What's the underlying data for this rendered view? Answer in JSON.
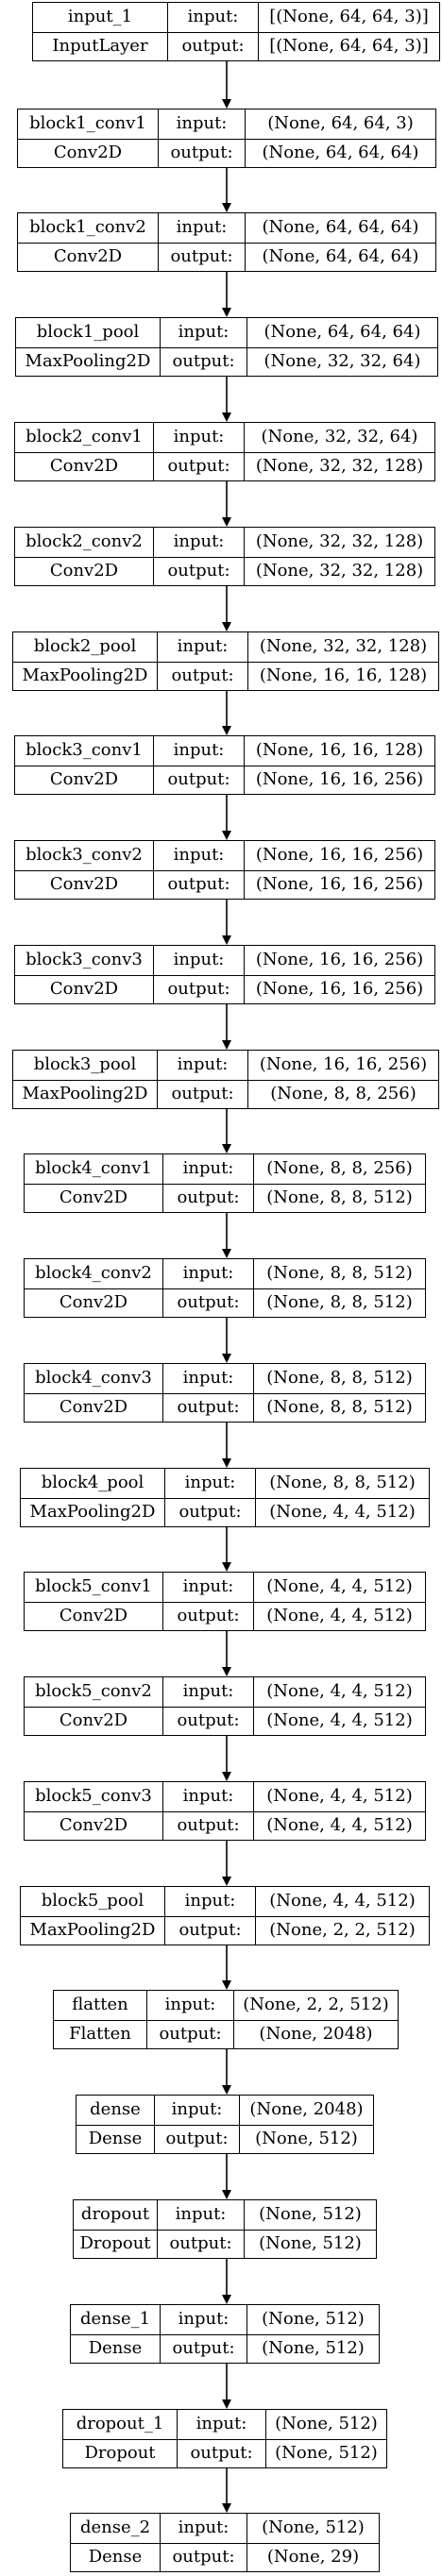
{
  "diagram": {
    "input_label": "input:",
    "output_label": "output:",
    "layers": [
      {
        "name": "input_1",
        "type": "InputLayer",
        "input": "[(None, 64, 64, 3)]",
        "output": "[(None, 64, 64, 3)]"
      },
      {
        "name": "block1_conv1",
        "type": "Conv2D",
        "input": "(None, 64, 64, 3)",
        "output": "(None, 64, 64, 64)"
      },
      {
        "name": "block1_conv2",
        "type": "Conv2D",
        "input": "(None, 64, 64, 64)",
        "output": "(None, 64, 64, 64)"
      },
      {
        "name": "block1_pool",
        "type": "MaxPooling2D",
        "input": "(None, 64, 64, 64)",
        "output": "(None, 32, 32, 64)"
      },
      {
        "name": "block2_conv1",
        "type": "Conv2D",
        "input": "(None, 32, 32, 64)",
        "output": "(None, 32, 32, 128)"
      },
      {
        "name": "block2_conv2",
        "type": "Conv2D",
        "input": "(None, 32, 32, 128)",
        "output": "(None, 32, 32, 128)"
      },
      {
        "name": "block2_pool",
        "type": "MaxPooling2D",
        "input": "(None, 32, 32, 128)",
        "output": "(None, 16, 16, 128)"
      },
      {
        "name": "block3_conv1",
        "type": "Conv2D",
        "input": "(None, 16, 16, 128)",
        "output": "(None, 16, 16, 256)"
      },
      {
        "name": "block3_conv2",
        "type": "Conv2D",
        "input": "(None, 16, 16, 256)",
        "output": "(None, 16, 16, 256)"
      },
      {
        "name": "block3_conv3",
        "type": "Conv2D",
        "input": "(None, 16, 16, 256)",
        "output": "(None, 16, 16, 256)"
      },
      {
        "name": "block3_pool",
        "type": "MaxPooling2D",
        "input": "(None, 16, 16, 256)",
        "output": "(None, 8, 8, 256)"
      },
      {
        "name": "block4_conv1",
        "type": "Conv2D",
        "input": "(None, 8, 8, 256)",
        "output": "(None, 8, 8, 512)"
      },
      {
        "name": "block4_conv2",
        "type": "Conv2D",
        "input": "(None, 8, 8, 512)",
        "output": "(None, 8, 8, 512)"
      },
      {
        "name": "block4_conv3",
        "type": "Conv2D",
        "input": "(None, 8, 8, 512)",
        "output": "(None, 8, 8, 512)"
      },
      {
        "name": "block4_pool",
        "type": "MaxPooling2D",
        "input": "(None, 8, 8, 512)",
        "output": "(None, 4, 4, 512)"
      },
      {
        "name": "block5_conv1",
        "type": "Conv2D",
        "input": "(None, 4, 4, 512)",
        "output": "(None, 4, 4, 512)"
      },
      {
        "name": "block5_conv2",
        "type": "Conv2D",
        "input": "(None, 4, 4, 512)",
        "output": "(None, 4, 4, 512)"
      },
      {
        "name": "block5_conv3",
        "type": "Conv2D",
        "input": "(None, 4, 4, 512)",
        "output": "(None, 4, 4, 512)"
      },
      {
        "name": "block5_pool",
        "type": "MaxPooling2D",
        "input": "(None, 4, 4, 512)",
        "output": "(None, 2, 2, 512)"
      },
      {
        "name": "flatten",
        "type": "Flatten",
        "input": "(None, 2, 2, 512)",
        "output": "(None, 2048)"
      },
      {
        "name": "dense",
        "type": "Dense",
        "input": "(None, 2048)",
        "output": "(None, 512)"
      },
      {
        "name": "dropout",
        "type": "Dropout",
        "input": "(None, 512)",
        "output": "(None, 512)"
      },
      {
        "name": "dense_1",
        "type": "Dense",
        "input": "(None, 512)",
        "output": "(None, 512)"
      },
      {
        "name": "dropout_1",
        "type": "Dropout",
        "input": "(None, 512)",
        "output": "(None, 512)"
      },
      {
        "name": "dense_2",
        "type": "Dense",
        "input": "(None, 512)",
        "output": "(None, 29)"
      }
    ]
  }
}
